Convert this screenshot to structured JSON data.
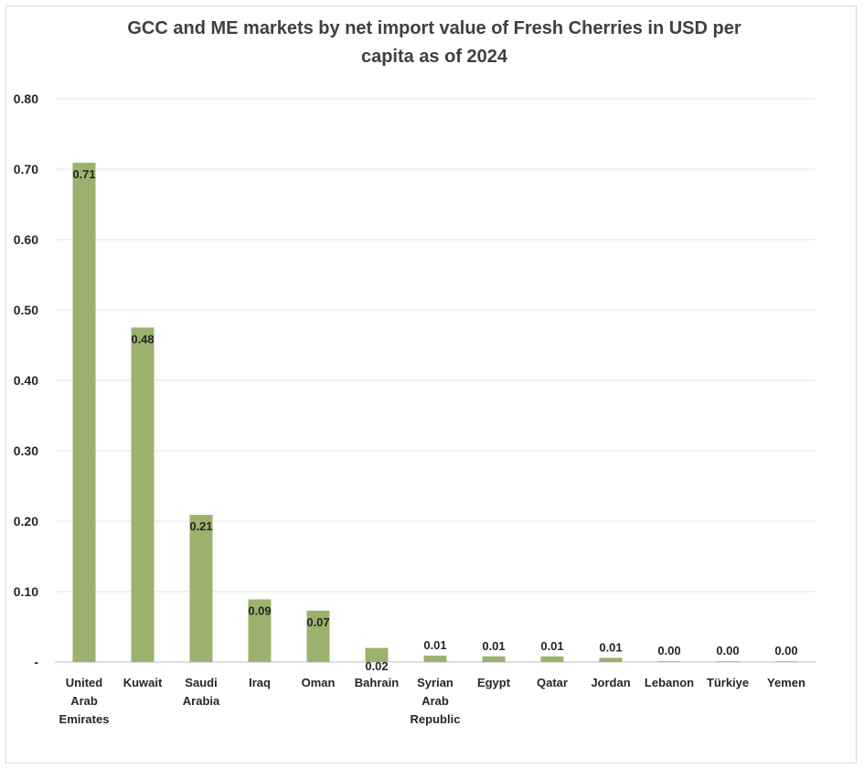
{
  "chart_data": {
    "type": "bar",
    "title_lines": [
      "GCC and ME markets by net import value of Fresh Cherries in USD per",
      "capita as of 2024"
    ],
    "categories": [
      [
        "United",
        "Arab",
        "Emirates"
      ],
      [
        "Kuwait"
      ],
      [
        "Saudi",
        "Arabia"
      ],
      [
        "Iraq"
      ],
      [
        "Oman"
      ],
      [
        "Bahrain"
      ],
      [
        "Syrian",
        "Arab",
        "Republic"
      ],
      [
        "Egypt"
      ],
      [
        "Qatar"
      ],
      [
        "Jordan"
      ],
      [
        "Lebanon"
      ],
      [
        "Türkiye"
      ],
      [
        "Yemen"
      ]
    ],
    "values": [
      0.709,
      0.475,
      0.209,
      0.089,
      0.073,
      0.02,
      0.009,
      0.008,
      0.008,
      0.006,
      0.001,
      0.001,
      0.001
    ],
    "value_labels": [
      "0.71",
      "0.48",
      "0.21",
      "0.09",
      "0.07",
      "0.02",
      "0.01",
      "0.01",
      "0.01",
      "0.01",
      "0.00",
      "0.00",
      "0.00"
    ],
    "label_inside": [
      true,
      true,
      true,
      true,
      true,
      false,
      false,
      false,
      false,
      false,
      false,
      false,
      false
    ],
    "yticks": [
      0,
      0.1,
      0.2,
      0.3,
      0.4,
      0.5,
      0.6,
      0.7,
      0.8
    ],
    "ytick_labels": [
      "-",
      "0.10",
      "0.20",
      "0.30",
      "0.40",
      "0.50",
      "0.60",
      "0.70",
      "0.80"
    ],
    "ylim": [
      0,
      0.8
    ],
    "xlabel": "",
    "ylabel": "",
    "grid": true,
    "legend": "none",
    "bar_color": "#9bb26e"
  }
}
